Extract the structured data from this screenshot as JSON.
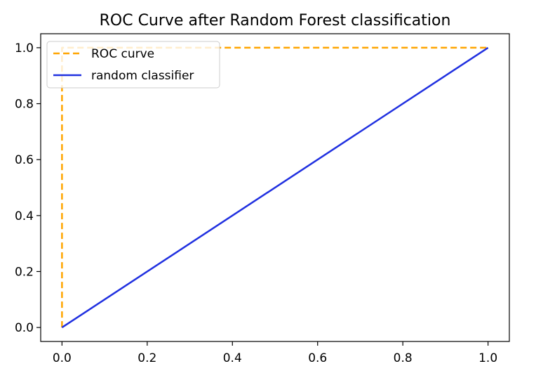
{
  "chart_data": {
    "type": "line",
    "title": "ROC Curve after Random Forest classification",
    "xlabel": "",
    "ylabel": "",
    "xlim": [
      -0.05,
      1.05
    ],
    "ylim": [
      -0.05,
      1.05
    ],
    "xticks": [
      0.0,
      0.2,
      0.4,
      0.6,
      0.8,
      1.0
    ],
    "yticks": [
      0.0,
      0.2,
      0.4,
      0.6,
      0.8,
      1.0
    ],
    "xtick_labels": [
      "0.0",
      "0.2",
      "0.4",
      "0.6",
      "0.8",
      "1.0"
    ],
    "ytick_labels": [
      "0.0",
      "0.2",
      "0.4",
      "0.6",
      "0.8",
      "1.0"
    ],
    "grid": false,
    "legend_position": "top-left",
    "series": [
      {
        "name": "ROC curve",
        "color": "#ffa500",
        "style": "dashed",
        "x": [
          0.0,
          0.0,
          1.0
        ],
        "y": [
          0.0,
          1.0,
          1.0
        ]
      },
      {
        "name": "random classifier",
        "color": "#2030e0",
        "style": "solid",
        "x": [
          0.0,
          1.0
        ],
        "y": [
          0.0,
          1.0
        ]
      }
    ]
  }
}
